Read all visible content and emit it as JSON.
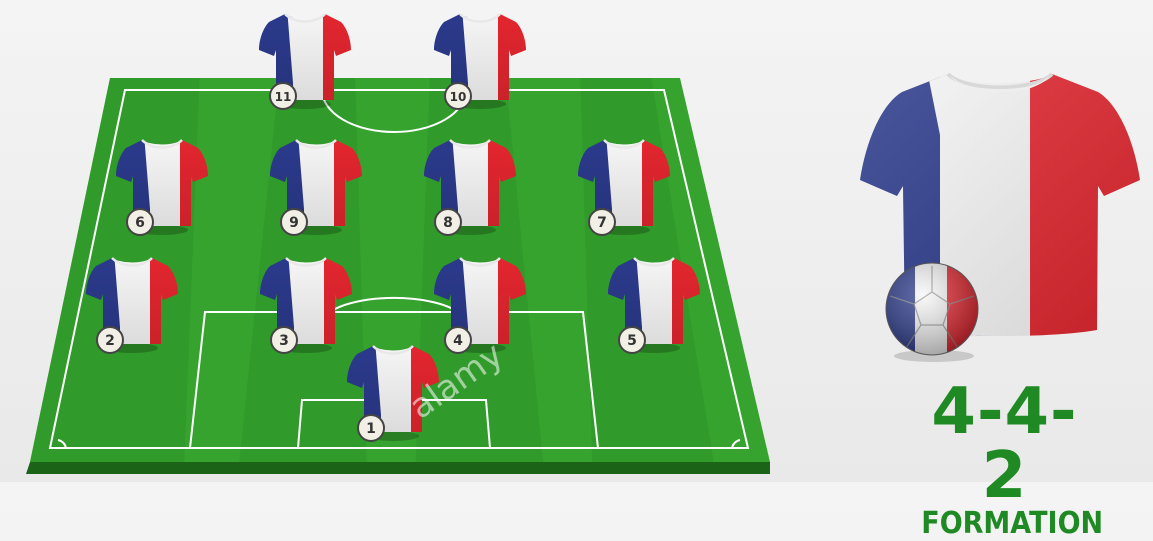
{
  "colors": {
    "pitch_light": "#3aa832",
    "pitch_dark": "#2f9a29",
    "pitch_side": "#1f6f1a",
    "line": "#ffffff",
    "flag_blue": "#2b3a8c",
    "flag_white": "#f7f7f7",
    "flag_red": "#e4262f",
    "text_green": "#1f8a23"
  },
  "players": [
    {
      "number": "11",
      "role": "forward"
    },
    {
      "number": "10",
      "role": "forward"
    },
    {
      "number": "6",
      "role": "midfielder"
    },
    {
      "number": "9",
      "role": "midfielder"
    },
    {
      "number": "8",
      "role": "midfielder"
    },
    {
      "number": "7",
      "role": "midfielder"
    },
    {
      "number": "2",
      "role": "defender"
    },
    {
      "number": "3",
      "role": "defender"
    },
    {
      "number": "4",
      "role": "defender"
    },
    {
      "number": "5",
      "role": "defender"
    },
    {
      "number": "1",
      "role": "goalkeeper"
    }
  ],
  "formation": {
    "value": "4-4-2",
    "label": "FORMATION"
  },
  "watermarks": [
    "a",
    "alamy"
  ]
}
